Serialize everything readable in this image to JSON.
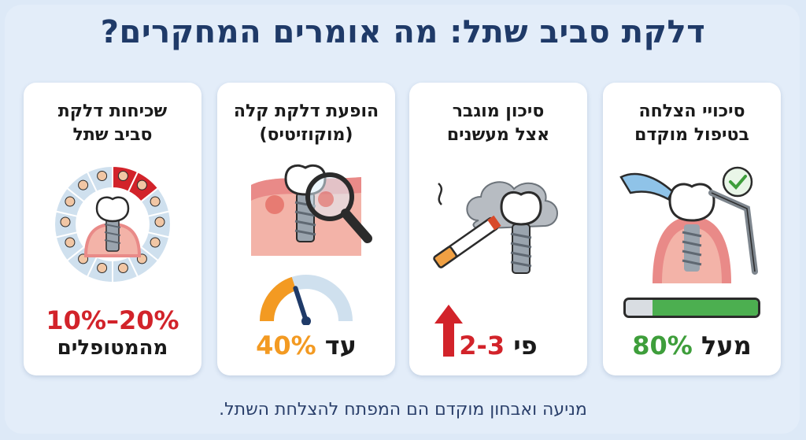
{
  "title": "דלקת סביב שתל: מה אומרים המחקרים?",
  "cards": [
    {
      "title_line1": "סיכויי הצלחה",
      "title_line2": "בטיפול מוקדם",
      "stat_prefix": "מעל",
      "stat_value": "80%",
      "progress_fraction": 0.8,
      "illustration": "treatment-check-icon"
    },
    {
      "title_line1": "סיכון מוגבר",
      "title_line2": "אצל מעשנים",
      "stat_prefix": "פי",
      "stat_value": "2-3",
      "illustration": "smoking-implant-icon"
    },
    {
      "title_line1": "הופעת דלקת קלה",
      "title_line2": "(מוקוזיטיס)",
      "stat_prefix": "עד",
      "stat_value": "40%",
      "gauge_fraction": 0.4,
      "illustration": "magnifier-gum-icon"
    },
    {
      "title_line1": "שכיחות דלקת",
      "title_line2": "סביב שתל",
      "stat_value": "10%–20%",
      "stat_suffix": "מהמטופלים",
      "highlighted_segments": 2,
      "total_segments": 14,
      "illustration": "patients-ring-icon"
    }
  ],
  "footer": "מניעה ואבחון מוקדם הם המפתח להצלחת השתל.",
  "colors": {
    "green": "#3e9e3b",
    "red": "#d2232a",
    "orange": "#f39a22",
    "navy": "#1f3a68"
  }
}
